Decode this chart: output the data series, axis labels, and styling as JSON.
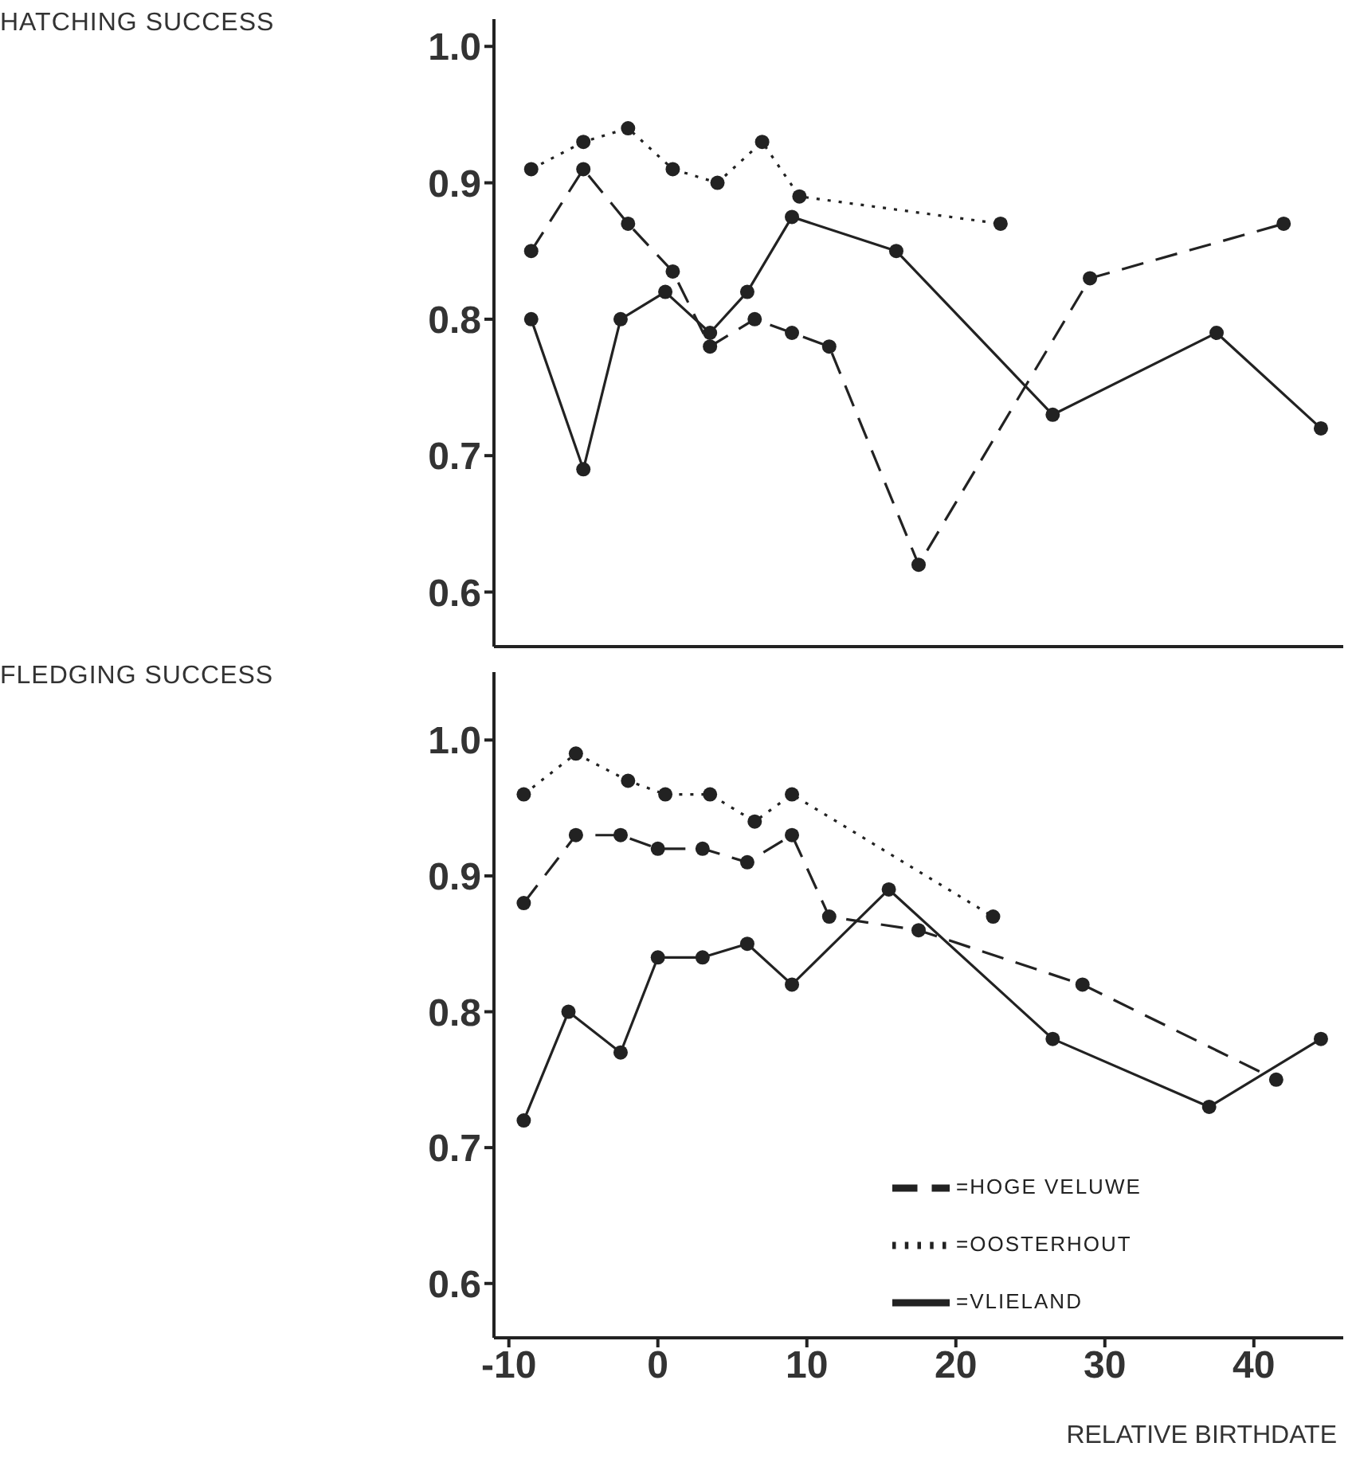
{
  "chart_data": [
    {
      "type": "line",
      "ylabel": "HATCHING SUCCESS",
      "xlim": [
        -11,
        46
      ],
      "xticks": [
        -10,
        0,
        10,
        20,
        30,
        40
      ],
      "ylim": [
        0.56,
        1.02
      ],
      "yticks": [
        0.6,
        0.7,
        0.8,
        0.9,
        {
          "value": 1,
          "label": "1.0"
        }
      ],
      "tick_labels": "y",
      "grid": false,
      "legend": false,
      "marker": "circle",
      "series": [
        {
          "color": "#222222",
          "line_style": "dotted",
          "x": [
            -8.5,
            -5,
            -2,
            1,
            4,
            7,
            9.5,
            23
          ],
          "values": [
            0.91,
            0.93,
            0.94,
            0.91,
            0.9,
            0.93,
            0.89,
            0.87
          ]
        },
        {
          "color": "#222222",
          "line_style": "dashed",
          "x": [
            -8.5,
            -5,
            -2,
            1,
            3.5,
            6.5,
            9,
            11.5,
            17.5,
            29,
            42
          ],
          "values": [
            0.85,
            0.91,
            0.87,
            0.835,
            0.78,
            0.8,
            0.79,
            0.78,
            0.62,
            0.83,
            0.87
          ]
        },
        {
          "color": "#222222",
          "line_style": "solid",
          "x": [
            -8.5,
            -5,
            -2.5,
            0.5,
            3.5,
            6,
            9,
            16,
            26.5,
            37.5,
            44.5
          ],
          "values": [
            0.8,
            0.69,
            0.8,
            0.82,
            0.79,
            0.82,
            0.875,
            0.85,
            0.73,
            0.79,
            0.72
          ]
        }
      ]
    },
    {
      "type": "line",
      "ylabel": "FLEDGING SUCCESS",
      "xlabel": "RELATIVE BIRTHDATE",
      "xlim": [
        -11,
        46
      ],
      "xticks": [
        -10,
        0,
        10,
        20,
        30,
        40
      ],
      "ylim": [
        0.56,
        1.05
      ],
      "yticks": [
        0.6,
        0.7,
        0.8,
        0.9,
        {
          "value": 1,
          "label": "1.0"
        }
      ],
      "grid": false,
      "legend": "bottom right",
      "marker": "circle",
      "series": [
        {
          "name": "=OOSTERHOUT",
          "color": "#222222",
          "line_style": "dotted",
          "x": [
            -9,
            -5.5,
            -2,
            0.5,
            3.5,
            6.5,
            9,
            22.5
          ],
          "values": [
            0.96,
            0.99,
            0.97,
            0.96,
            0.96,
            0.94,
            0.96,
            0.87
          ]
        },
        {
          "name": "=HOGE VELUWE",
          "color": "#222222",
          "line_style": "dashed",
          "x": [
            -9,
            -5.5,
            -2.5,
            0,
            3,
            6,
            9,
            11.5,
            17.5,
            28.5,
            41.5
          ],
          "values": [
            0.88,
            0.93,
            0.93,
            0.92,
            0.92,
            0.91,
            0.93,
            0.87,
            0.86,
            0.82,
            0.75
          ]
        },
        {
          "name": "=VLIELAND",
          "color": "#222222",
          "line_style": "solid",
          "x": [
            -9,
            -6,
            -2.5,
            0,
            3,
            6,
            9,
            15.5,
            26.5,
            37,
            44.5
          ],
          "values": [
            0.72,
            0.8,
            0.77,
            0.84,
            0.84,
            0.85,
            0.82,
            0.89,
            0.78,
            0.73,
            0.78
          ]
        }
      ]
    }
  ]
}
